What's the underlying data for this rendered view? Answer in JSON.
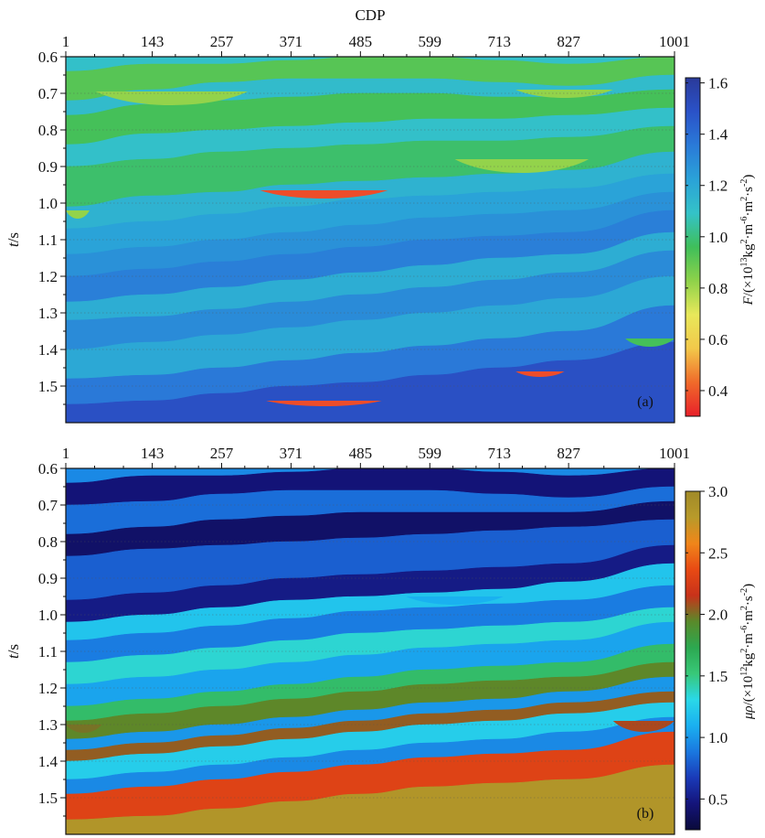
{
  "chart_data": [
    {
      "type": "heatmap",
      "panel_label": "(a)",
      "x_axis_title": "CDP",
      "x_ticks": [
        1,
        143,
        257,
        371,
        485,
        599,
        713,
        827,
        1001
      ],
      "x_tick_labels": [
        "1",
        "143",
        "257",
        "371",
        "485",
        "599",
        "713",
        "827",
        "1001"
      ],
      "y_axis_title_italic": "t",
      "y_axis_title_rest": "/s",
      "y_ticks": [
        0.6,
        0.7,
        0.8,
        0.9,
        1.0,
        1.1,
        1.2,
        1.3,
        1.4,
        1.5
      ],
      "y_tick_labels": [
        "0.6",
        "0.7",
        "0.8",
        "0.9",
        "1.0",
        "1.1",
        "1.2",
        "1.3",
        "1.4",
        "1.5"
      ],
      "xlim": [
        1,
        1001
      ],
      "ylim": [
        0.6,
        1.6
      ],
      "y_inverted": true,
      "colorbar": {
        "title_italic": "F",
        "title_rest": "/(×10",
        "title_exp1": "13",
        "title_mid": "kg",
        "title_exp2": "2",
        "title_mid2": "·m",
        "title_exp3": "-6",
        "title_mid3": "·m",
        "title_exp4": "2",
        "title_mid4": "·s",
        "title_exp5": "-2",
        "title_end": ")",
        "range": [
          0.3,
          1.62
        ],
        "ticks": [
          0.4,
          0.6,
          0.8,
          1.0,
          1.2,
          1.4,
          1.6
        ],
        "tick_labels": [
          "0.4",
          "0.6",
          "0.8",
          "1.0",
          "1.2",
          "1.4",
          "1.6"
        ],
        "colormap": [
          "#e8202a",
          "#f06a2a",
          "#f2c84a",
          "#e8e85a",
          "#8ed24a",
          "#3fbf5a",
          "#34c2c8",
          "#2aa2d8",
          "#2a7ad8",
          "#2a52c8",
          "#2a3a9a"
        ]
      },
      "background": 1.3,
      "layers": [
        {
          "top": [
            0.6,
            0.6,
            0.6,
            0.6,
            0.6,
            0.6,
            0.6,
            0.6,
            0.6
          ],
          "bot": [
            0.64,
            0.62,
            0.62,
            0.61,
            0.6,
            0.6,
            0.61,
            0.62,
            0.6
          ],
          "value": 1.1
        },
        {
          "top": [
            0.64,
            0.62,
            0.62,
            0.61,
            0.6,
            0.6,
            0.61,
            0.62,
            0.6
          ],
          "bot": [
            0.72,
            0.69,
            0.67,
            0.66,
            0.66,
            0.66,
            0.67,
            0.68,
            0.65
          ],
          "value": 0.92
        },
        {
          "top": [
            0.72,
            0.69,
            0.67,
            0.66,
            0.66,
            0.66,
            0.67,
            0.68,
            0.65
          ],
          "bot": [
            0.76,
            0.73,
            0.72,
            0.71,
            0.7,
            0.7,
            0.71,
            0.71,
            0.69
          ],
          "value": 1.12
        },
        {
          "top": [
            0.76,
            0.73,
            0.72,
            0.71,
            0.7,
            0.7,
            0.71,
            0.71,
            0.69
          ],
          "bot": [
            0.84,
            0.81,
            0.8,
            0.79,
            0.78,
            0.77,
            0.77,
            0.76,
            0.74
          ],
          "value": 0.95
        },
        {
          "top": [
            0.84,
            0.81,
            0.8,
            0.79,
            0.78,
            0.77,
            0.77,
            0.76,
            0.74
          ],
          "bot": [
            0.9,
            0.88,
            0.86,
            0.85,
            0.84,
            0.83,
            0.83,
            0.82,
            0.79
          ],
          "value": 1.1
        },
        {
          "top": [
            0.9,
            0.88,
            0.86,
            0.85,
            0.84,
            0.83,
            0.83,
            0.82,
            0.79
          ],
          "bot": [
            1.01,
            0.98,
            0.97,
            0.95,
            0.94,
            0.93,
            0.92,
            0.91,
            0.86
          ],
          "value": 0.98
        },
        {
          "top": [
            1.01,
            0.98,
            0.97,
            0.95,
            0.94,
            0.93,
            0.92,
            0.91,
            0.86
          ],
          "bot": [
            1.07,
            1.05,
            1.03,
            1.01,
            0.99,
            0.98,
            0.97,
            0.96,
            0.92
          ],
          "value": 1.16
        },
        {
          "top": [
            1.07,
            1.05,
            1.03,
            1.01,
            0.99,
            0.98,
            0.97,
            0.96,
            0.92
          ],
          "bot": [
            1.14,
            1.12,
            1.1,
            1.08,
            1.06,
            1.04,
            1.03,
            1.02,
            0.97
          ],
          "value": 1.22
        },
        {
          "top": [
            1.14,
            1.12,
            1.1,
            1.08,
            1.06,
            1.04,
            1.03,
            1.02,
            0.97
          ],
          "bot": [
            1.2,
            1.18,
            1.16,
            1.14,
            1.12,
            1.1,
            1.09,
            1.08,
            1.02
          ],
          "value": 1.28
        },
        {
          "top": [
            1.2,
            1.18,
            1.16,
            1.14,
            1.12,
            1.1,
            1.09,
            1.08,
            1.02
          ],
          "bot": [
            1.27,
            1.25,
            1.23,
            1.21,
            1.19,
            1.17,
            1.15,
            1.14,
            1.08
          ],
          "value": 1.34
        },
        {
          "top": [
            1.27,
            1.25,
            1.23,
            1.21,
            1.19,
            1.17,
            1.15,
            1.14,
            1.08
          ],
          "bot": [
            1.32,
            1.31,
            1.29,
            1.27,
            1.25,
            1.23,
            1.21,
            1.19,
            1.13
          ],
          "value": 1.18
        },
        {
          "top": [
            1.32,
            1.31,
            1.29,
            1.27,
            1.25,
            1.23,
            1.21,
            1.19,
            1.13
          ],
          "bot": [
            1.4,
            1.38,
            1.36,
            1.34,
            1.32,
            1.3,
            1.28,
            1.26,
            1.2
          ],
          "value": 1.3
        },
        {
          "top": [
            1.4,
            1.38,
            1.36,
            1.34,
            1.32,
            1.3,
            1.28,
            1.26,
            1.2
          ],
          "bot": [
            1.48,
            1.47,
            1.45,
            1.43,
            1.41,
            1.39,
            1.37,
            1.35,
            1.28
          ],
          "value": 1.2
        },
        {
          "top": [
            1.48,
            1.47,
            1.45,
            1.43,
            1.41,
            1.39,
            1.37,
            1.35,
            1.28
          ],
          "bot": [
            1.55,
            1.54,
            1.52,
            1.5,
            1.49,
            1.47,
            1.45,
            1.43,
            1.38
          ],
          "value": 1.36
        },
        {
          "top": [
            1.55,
            1.54,
            1.52,
            1.5,
            1.49,
            1.47,
            1.45,
            1.43,
            1.38
          ],
          "bot": [
            1.6,
            1.6,
            1.6,
            1.6,
            1.6,
            1.6,
            1.6,
            1.6,
            1.6
          ],
          "value": 1.5
        }
      ],
      "lenses": [
        {
          "x0": 50,
          "x1": 300,
          "top": 0.695,
          "bot": 0.745,
          "value": 0.82
        },
        {
          "x0": 740,
          "x1": 900,
          "top": 0.69,
          "bot": 0.72,
          "value": 0.82
        },
        {
          "x0": 640,
          "x1": 860,
          "top": 0.88,
          "bot": 0.93,
          "value": 0.82
        },
        {
          "x0": 320,
          "x1": 530,
          "top": 0.965,
          "bot": 0.995,
          "value": 0.38
        },
        {
          "x0": 1,
          "x1": 40,
          "top": 1.02,
          "bot": 1.05,
          "value": 0.82
        },
        {
          "x0": 330,
          "x1": 520,
          "top": 1.54,
          "bot": 1.56,
          "value": 0.38
        },
        {
          "x0": 740,
          "x1": 820,
          "top": 1.46,
          "bot": 1.48,
          "value": 0.38
        },
        {
          "x0": 920,
          "x1": 1001,
          "top": 1.37,
          "bot": 1.4,
          "value": 0.95
        }
      ]
    },
    {
      "type": "heatmap",
      "panel_label": "(b)",
      "x_ticks": [
        1,
        143,
        257,
        371,
        485,
        599,
        713,
        827,
        1001
      ],
      "x_tick_labels": [
        "1",
        "143",
        "257",
        "371",
        "485",
        "599",
        "713",
        "827",
        "1001"
      ],
      "y_axis_title_italic": "t",
      "y_axis_title_rest": "/s",
      "y_ticks": [
        0.6,
        0.7,
        0.8,
        0.9,
        1.0,
        1.1,
        1.2,
        1.3,
        1.4,
        1.5
      ],
      "y_tick_labels": [
        "0.6",
        "0.7",
        "0.8",
        "0.9",
        "1.0",
        "1.1",
        "1.2",
        "1.3",
        "1.4",
        "1.5"
      ],
      "xlim": [
        1,
        1001
      ],
      "ylim": [
        0.6,
        1.6
      ],
      "y_inverted": true,
      "colorbar": {
        "title_italic": "μρ",
        "title_rest": "/(×10",
        "title_exp1": "12",
        "title_mid": "kg",
        "title_exp2": "2",
        "title_mid2": "·m",
        "title_exp3": "-6",
        "title_mid3": "·m",
        "title_exp4": "2",
        "title_mid4": "·s",
        "title_exp5": "-2",
        "title_end": ")",
        "range": [
          0.25,
          3.0
        ],
        "ticks": [
          0.5,
          1.0,
          1.5,
          2.0,
          2.5,
          3.0
        ],
        "tick_labels": [
          "0.5",
          "1.0",
          "1.5",
          "2.0",
          "2.5",
          "3.0"
        ],
        "colormap": [
          "#0a0a3a",
          "#14147a",
          "#1a3ab8",
          "#1a78e0",
          "#1ab0f0",
          "#2ad8e8",
          "#38c878",
          "#2ca850",
          "#5a8a2a",
          "#c8321a",
          "#e84a14",
          "#f0861a",
          "#b89a2a",
          "#a08a28"
        ]
      },
      "background": 1.1,
      "layers": [
        {
          "top": [
            0.6,
            0.6,
            0.6,
            0.6,
            0.6,
            0.6,
            0.6,
            0.6,
            0.6
          ],
          "bot": [
            0.64,
            0.62,
            0.62,
            0.61,
            0.6,
            0.6,
            0.61,
            0.62,
            0.6
          ],
          "value": 0.95
        },
        {
          "top": [
            0.64,
            0.62,
            0.62,
            0.61,
            0.6,
            0.6,
            0.61,
            0.62,
            0.6
          ],
          "bot": [
            0.7,
            0.69,
            0.67,
            0.66,
            0.66,
            0.66,
            0.67,
            0.68,
            0.65
          ],
          "value": 0.45
        },
        {
          "top": [
            0.7,
            0.69,
            0.67,
            0.66,
            0.66,
            0.66,
            0.67,
            0.68,
            0.65
          ],
          "bot": [
            0.78,
            0.76,
            0.74,
            0.73,
            0.72,
            0.72,
            0.72,
            0.72,
            0.69
          ],
          "value": 0.85
        },
        {
          "top": [
            0.78,
            0.76,
            0.74,
            0.73,
            0.72,
            0.72,
            0.72,
            0.72,
            0.69
          ],
          "bot": [
            0.84,
            0.82,
            0.81,
            0.8,
            0.79,
            0.78,
            0.77,
            0.76,
            0.74
          ],
          "value": 0.4
        },
        {
          "top": [
            0.84,
            0.82,
            0.81,
            0.8,
            0.79,
            0.78,
            0.77,
            0.76,
            0.74
          ],
          "bot": [
            0.96,
            0.94,
            0.92,
            0.9,
            0.89,
            0.88,
            0.87,
            0.86,
            0.81
          ],
          "value": 0.8
        },
        {
          "top": [
            0.96,
            0.94,
            0.92,
            0.9,
            0.89,
            0.88,
            0.87,
            0.86,
            0.81
          ],
          "bot": [
            1.02,
            1.0,
            0.98,
            0.96,
            0.95,
            0.94,
            0.93,
            0.91,
            0.86
          ],
          "value": 0.5
        },
        {
          "top": [
            1.02,
            1.0,
            0.98,
            0.96,
            0.95,
            0.94,
            0.93,
            0.91,
            0.86
          ],
          "bot": [
            1.07,
            1.05,
            1.03,
            1.01,
            0.99,
            0.98,
            0.97,
            0.96,
            0.92
          ],
          "value": 1.2
        },
        {
          "top": [
            1.07,
            1.05,
            1.03,
            1.01,
            0.99,
            0.98,
            0.97,
            0.96,
            0.92
          ],
          "bot": [
            1.13,
            1.11,
            1.09,
            1.07,
            1.05,
            1.04,
            1.03,
            1.02,
            0.98
          ],
          "value": 0.9
        },
        {
          "top": [
            1.13,
            1.11,
            1.09,
            1.07,
            1.05,
            1.04,
            1.03,
            1.02,
            0.98
          ],
          "bot": [
            1.19,
            1.17,
            1.15,
            1.13,
            1.11,
            1.09,
            1.08,
            1.07,
            1.02
          ],
          "value": 1.35
        },
        {
          "top": [
            1.19,
            1.17,
            1.15,
            1.13,
            1.11,
            1.09,
            1.08,
            1.07,
            1.02
          ],
          "bot": [
            1.25,
            1.23,
            1.21,
            1.19,
            1.17,
            1.15,
            1.14,
            1.13,
            1.08
          ],
          "value": 1.05
        },
        {
          "top": [
            1.25,
            1.23,
            1.21,
            1.19,
            1.17,
            1.15,
            1.14,
            1.13,
            1.08
          ],
          "bot": [
            1.29,
            1.27,
            1.25,
            1.23,
            1.21,
            1.19,
            1.18,
            1.17,
            1.13
          ],
          "value": 1.6
        },
        {
          "top": [
            1.29,
            1.27,
            1.25,
            1.23,
            1.21,
            1.19,
            1.18,
            1.17,
            1.13
          ],
          "bot": [
            1.34,
            1.32,
            1.3,
            1.28,
            1.26,
            1.24,
            1.23,
            1.21,
            1.17
          ],
          "value": 1.95
        },
        {
          "top": [
            1.34,
            1.32,
            1.3,
            1.28,
            1.26,
            1.24,
            1.23,
            1.21,
            1.17
          ],
          "bot": [
            1.37,
            1.35,
            1.33,
            1.31,
            1.29,
            1.27,
            1.26,
            1.24,
            1.21
          ],
          "value": 1.0
        },
        {
          "top": [
            1.37,
            1.35,
            1.33,
            1.31,
            1.29,
            1.27,
            1.26,
            1.24,
            1.21
          ],
          "bot": [
            1.4,
            1.38,
            1.36,
            1.34,
            1.32,
            1.3,
            1.29,
            1.27,
            1.24
          ],
          "value": 2.05
        },
        {
          "top": [
            1.4,
            1.38,
            1.36,
            1.34,
            1.32,
            1.3,
            1.29,
            1.27,
            1.24
          ],
          "bot": [
            1.45,
            1.43,
            1.41,
            1.39,
            1.37,
            1.35,
            1.34,
            1.32,
            1.28
          ],
          "value": 1.25
        },
        {
          "top": [
            1.45,
            1.43,
            1.41,
            1.39,
            1.37,
            1.35,
            1.34,
            1.32,
            1.28
          ],
          "bot": [
            1.49,
            1.47,
            1.45,
            1.43,
            1.41,
            1.39,
            1.38,
            1.37,
            1.32
          ],
          "value": 0.95
        },
        {
          "top": [
            1.49,
            1.47,
            1.45,
            1.43,
            1.41,
            1.39,
            1.38,
            1.37,
            1.32
          ],
          "bot": [
            1.56,
            1.55,
            1.53,
            1.51,
            1.49,
            1.47,
            1.46,
            1.45,
            1.41
          ],
          "value": 2.3
        },
        {
          "top": [
            1.56,
            1.55,
            1.53,
            1.51,
            1.49,
            1.47,
            1.46,
            1.45,
            1.41
          ],
          "bot": [
            1.6,
            1.6,
            1.6,
            1.6,
            1.6,
            1.6,
            1.6,
            1.6,
            1.6
          ],
          "value": 2.85
        }
      ],
      "lenses": [
        {
          "x0": 560,
          "x1": 720,
          "top": 0.95,
          "bot": 0.98,
          "value": 1.1
        },
        {
          "x0": 1,
          "x1": 60,
          "top": 1.3,
          "bot": 1.33,
          "value": 2.0
        },
        {
          "x0": 900,
          "x1": 1001,
          "top": 1.29,
          "bot": 1.33,
          "value": 2.1
        }
      ]
    }
  ]
}
